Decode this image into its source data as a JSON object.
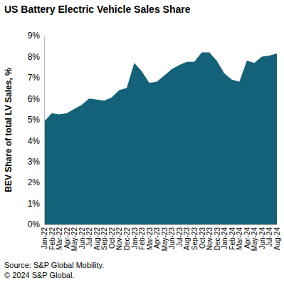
{
  "chart_data": {
    "type": "area",
    "title": "US Battery Electric Vehicle Sales Share",
    "y_label": "BEV Share of total LV Sales, %",
    "annotations": [
      "Source: S&P Global Mobility.",
      "© 2024 S&P Global."
    ],
    "categories": [
      "Jan-22",
      "Feb-22",
      "Mar-22",
      "Apr-22",
      "May-22",
      "Jun-22",
      "Jul-22",
      "Aug-22",
      "Sep-22",
      "Oct-22",
      "Nov-22",
      "Dec-22",
      "Jan-23",
      "Feb-23",
      "Mar-23",
      "Apr-23",
      "May-23",
      "Jun-23",
      "Jul-23",
      "Aug-23",
      "Sep-23",
      "Oct-23",
      "Nov-23",
      "Dec-23",
      "Jan-24",
      "Feb-24",
      "Mar-24",
      "Apr-24",
      "May-24",
      "Jun-24",
      "Jul-24",
      "Aug-24"
    ],
    "values": [
      4.9,
      5.3,
      5.25,
      5.3,
      5.5,
      5.7,
      6.0,
      5.95,
      5.9,
      6.05,
      6.4,
      6.5,
      7.7,
      7.3,
      6.75,
      6.8,
      7.1,
      7.4,
      7.6,
      7.75,
      7.75,
      8.2,
      8.2,
      7.8,
      7.2,
      6.9,
      6.8,
      7.8,
      7.7,
      8.0,
      8.05,
      8.15
    ],
    "color": "#14617a",
    "ylim": [
      0,
      9
    ],
    "yticks": [
      {
        "value": 0,
        "label": "0%"
      },
      {
        "value": 1,
        "label": "1%"
      },
      {
        "value": 2,
        "label": "2%"
      },
      {
        "value": 3,
        "label": "3%"
      },
      {
        "value": 4,
        "label": "4%"
      },
      {
        "value": 5,
        "label": "5%"
      },
      {
        "value": 6,
        "label": "6%"
      },
      {
        "value": 7,
        "label": "7%"
      },
      {
        "value": 8,
        "label": "8%"
      },
      {
        "value": 9,
        "label": "9%"
      }
    ],
    "grid": false
  }
}
